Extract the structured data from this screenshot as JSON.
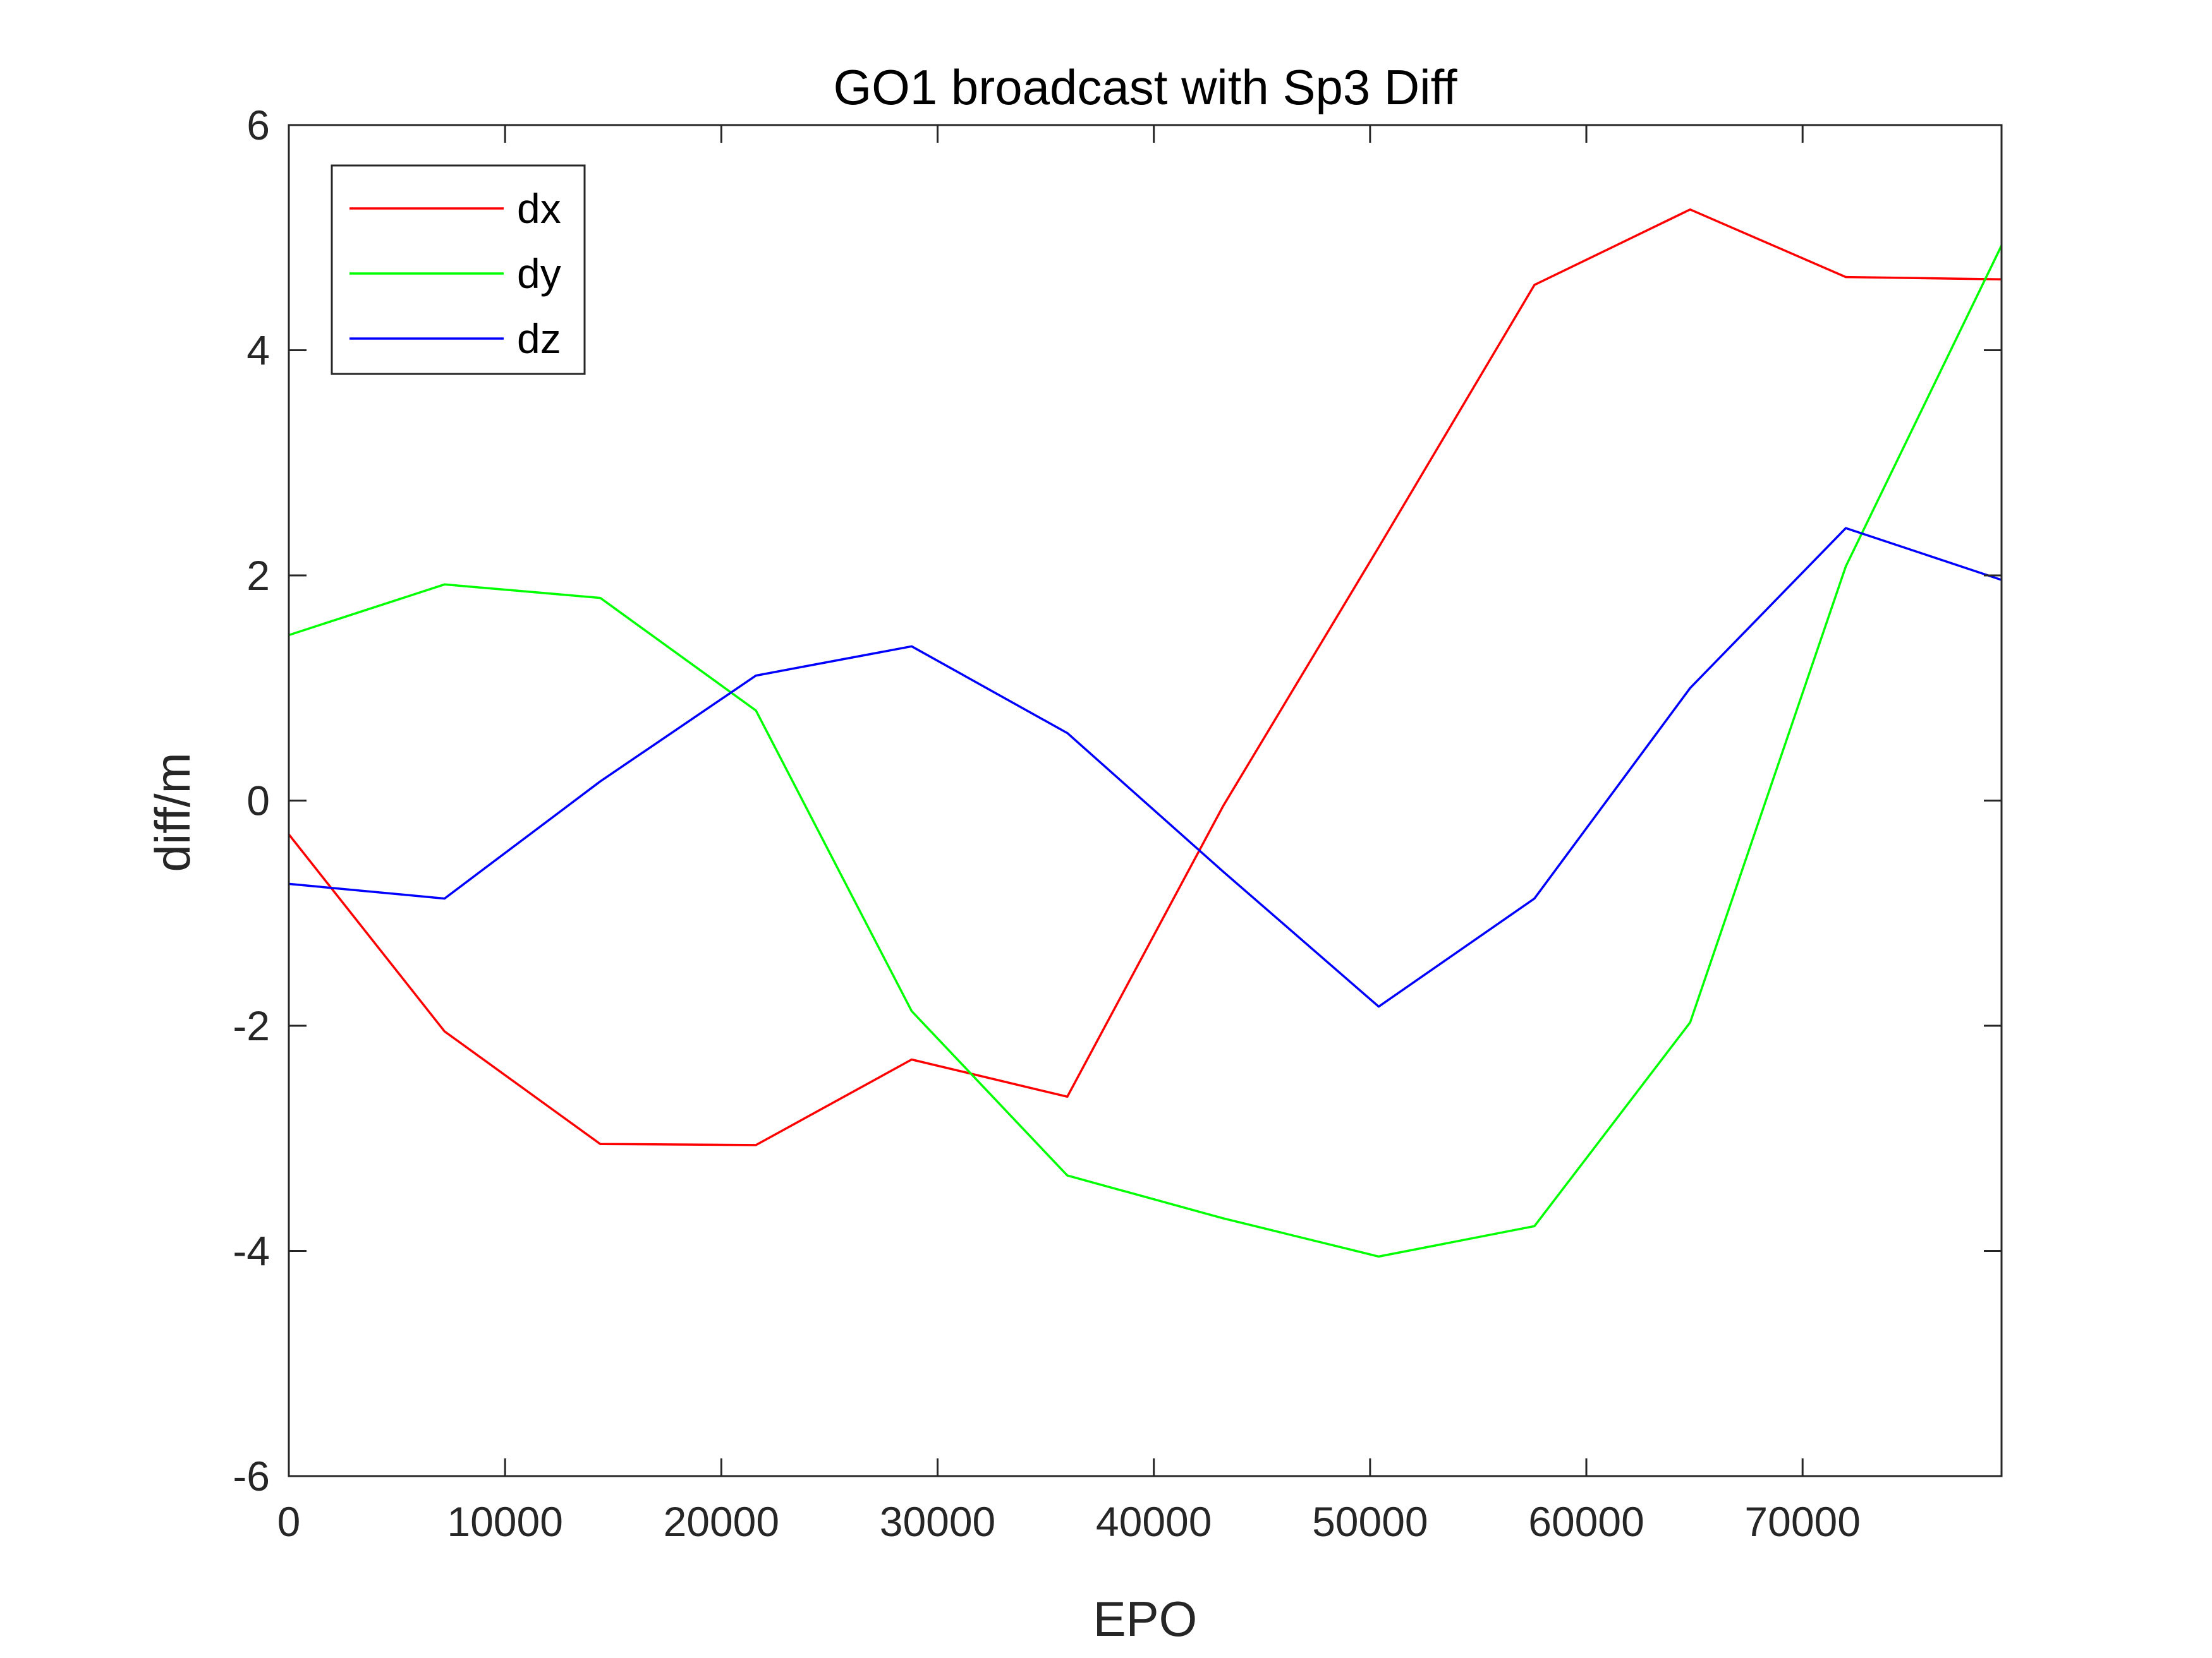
{
  "chart_data": {
    "type": "line",
    "title": "GO1 broadcast with Sp3 Diff",
    "xlabel": "EPO",
    "ylabel": "diff/m",
    "xlim": [
      0,
      79200
    ],
    "ylim": [
      -6,
      6
    ],
    "xticks": [
      0,
      10000,
      20000,
      30000,
      40000,
      50000,
      60000,
      70000
    ],
    "xtick_labels": [
      "0",
      "10000",
      "20000",
      "30000",
      "40000",
      "50000",
      "60000",
      "70000"
    ],
    "yticks": [
      -6,
      -4,
      -2,
      0,
      2,
      4,
      6
    ],
    "ytick_labels": [
      "-6",
      "-4",
      "-2",
      "0",
      "2",
      "4",
      "6"
    ],
    "grid": false,
    "legend_position": "top-left",
    "x": [
      0,
      7200,
      14400,
      21600,
      28800,
      36000,
      43200,
      50400,
      57600,
      64800,
      72000,
      79200
    ],
    "series": [
      {
        "name": "dx",
        "color": "#ff0000",
        "values": [
          -0.3,
          -2.05,
          -3.05,
          -3.06,
          -2.3,
          -2.63,
          -0.05,
          2.25,
          4.58,
          5.25,
          4.65,
          4.63
        ]
      },
      {
        "name": "dy",
        "color": "#00ff00",
        "values": [
          1.47,
          1.92,
          1.8,
          0.8,
          -1.87,
          -3.33,
          -3.71,
          -4.05,
          -3.78,
          -1.97,
          2.08,
          4.93
        ]
      },
      {
        "name": "dz",
        "color": "#0000ff",
        "values": [
          -0.74,
          -0.87,
          0.17,
          1.11,
          1.37,
          0.6,
          -0.63,
          -1.83,
          -0.87,
          1.0,
          2.42,
          1.96
        ]
      }
    ]
  }
}
